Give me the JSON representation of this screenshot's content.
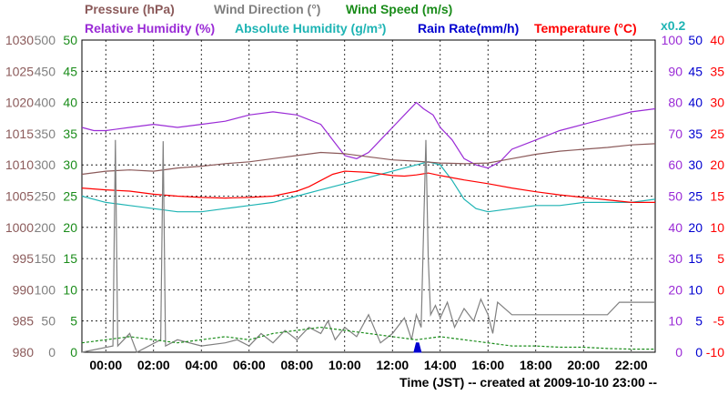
{
  "chart_data": {
    "type": "line",
    "title_lines": [
      [
        {
          "text": "Pressure (hPa)",
          "color": "#8b5a5a"
        },
        {
          "text": "Wind Direction (°)",
          "color": "#808080"
        },
        {
          "text": "Wind Speed (m/s)",
          "color": "#1a8c1a"
        }
      ],
      [
        {
          "text": "Relative Humidity (%)",
          "color": "#9a2bd6"
        },
        {
          "text": "Absolute Humidity (g/m³)",
          "color": "#1eb4b4"
        },
        {
          "text": "Rain Rate(mm/h)",
          "color": "#0000d0"
        },
        {
          "text": "Temperature (°C)",
          "color": "#ff0000"
        }
      ]
    ],
    "scale_note": {
      "text": "x0.2",
      "color": "#1eb4b4"
    },
    "xlabel": "Time (JST) -- created at 2009-10-10 23:00 --",
    "x_range_hours": [
      -1,
      23
    ],
    "x_ticks": [
      "00:00",
      "02:00",
      "04:00",
      "06:00",
      "08:00",
      "10:00",
      "12:00",
      "14:00",
      "16:00",
      "18:00",
      "20:00",
      "22:00"
    ],
    "x_tick_hours": [
      0,
      2,
      4,
      6,
      8,
      10,
      12,
      14,
      16,
      18,
      20,
      22
    ],
    "grid": true,
    "axes": {
      "pressure": {
        "side": "left",
        "color": "#8b5a5a",
        "ticks": [
          "1030",
          "1025",
          "1020",
          "1015",
          "1010",
          "1005",
          "1000",
          "995",
          "990",
          "985",
          "980"
        ],
        "range": [
          980,
          1030
        ]
      },
      "wind_direction": {
        "side": "left",
        "color": "#808080",
        "ticks": [
          "500",
          "450",
          "400",
          "350",
          "300",
          "250",
          "200",
          "150",
          "100",
          "50",
          "0"
        ],
        "range": [
          0,
          500
        ]
      },
      "wind_speed": {
        "side": "left",
        "color": "#1a8c1a",
        "ticks": [
          "50",
          "45",
          "40",
          "35",
          "30",
          "25",
          "20",
          "15",
          "10",
          "5",
          "0"
        ],
        "range": [
          0,
          50
        ]
      },
      "humidity": {
        "side": "right",
        "color": "#9a2bd6",
        "ticks": [
          "100",
          "90",
          "80",
          "70",
          "60",
          "50",
          "40",
          "30",
          "20",
          "10",
          "0"
        ],
        "range": [
          0,
          100
        ]
      },
      "rain_rate": {
        "side": "right",
        "color": "#0000d0",
        "ticks": [
          "50",
          "45",
          "40",
          "35",
          "30",
          "25",
          "20",
          "15",
          "10",
          "5",
          "0"
        ],
        "range": [
          0,
          50
        ]
      },
      "temperature": {
        "side": "right",
        "color": "#ff0000",
        "ticks": [
          "40",
          "35",
          "30",
          "25",
          "20",
          "15",
          "10",
          "5",
          "0",
          "-5",
          "-10"
        ],
        "range": [
          -10,
          40
        ]
      }
    },
    "series": [
      {
        "name": "Relative Humidity",
        "axis": "humidity",
        "color": "#9a2bd6",
        "x": [
          -1,
          -0.5,
          0,
          1,
          2,
          3,
          4,
          5,
          6,
          7,
          8,
          9,
          9.5,
          10,
          10.5,
          11,
          11.5,
          12,
          12.5,
          13,
          13.3,
          13.7,
          14,
          14.5,
          15,
          15.5,
          16,
          16.5,
          17,
          18,
          19,
          20,
          21,
          22,
          23
        ],
        "y": [
          72,
          71,
          71,
          72,
          73,
          72,
          73,
          74,
          76,
          77,
          76,
          73,
          68,
          63,
          62,
          64,
          68,
          72,
          76,
          80,
          78,
          76,
          72,
          68,
          62,
          60,
          59,
          61,
          65,
          68,
          71,
          73,
          75,
          77,
          78
        ]
      },
      {
        "name": "Absolute Humidity (x0.2)",
        "axis": "humidity",
        "color": "#1eb4b4",
        "x": [
          -1,
          0,
          1,
          2,
          3,
          4,
          5,
          6,
          7,
          8,
          9,
          10,
          11,
          12,
          12.5,
          13,
          13.5,
          14,
          14.5,
          15,
          15.5,
          16,
          17,
          18,
          19,
          20,
          21,
          22,
          23
        ],
        "y": [
          50,
          48,
          47,
          46,
          45,
          45,
          46,
          47,
          48,
          50,
          52,
          54,
          56,
          58,
          59,
          60,
          61,
          60,
          55,
          49,
          46,
          45,
          46,
          47,
          47,
          48,
          48,
          48,
          49
        ]
      },
      {
        "name": "Pressure",
        "axis": "pressure",
        "color": "#8b5a5a",
        "x": [
          -1,
          0,
          1,
          2,
          3,
          4,
          5,
          6,
          7,
          8,
          9,
          10,
          11,
          12,
          13,
          14,
          15,
          16,
          17,
          18,
          19,
          20,
          21,
          22,
          23
        ],
        "y": [
          1008.5,
          1009,
          1009.2,
          1009,
          1009.5,
          1009.8,
          1010.2,
          1010.5,
          1011,
          1011.5,
          1012,
          1011.8,
          1011.3,
          1010.8,
          1010.6,
          1010.3,
          1010.2,
          1010.3,
          1011,
          1011.7,
          1012.2,
          1012.5,
          1012.8,
          1013.2,
          1013.4
        ]
      },
      {
        "name": "Temperature",
        "axis": "temperature",
        "color": "#ff0000",
        "x": [
          -1,
          0,
          1,
          2,
          3,
          4,
          5,
          6,
          7,
          8,
          8.5,
          9,
          9.5,
          10,
          11,
          12,
          12.5,
          13,
          13.5,
          14,
          15,
          16,
          17,
          18,
          19,
          20,
          21,
          22,
          23
        ],
        "y": [
          16.3,
          16,
          15.8,
          15.3,
          15,
          14.8,
          14.7,
          14.8,
          15,
          15.8,
          16.5,
          17.5,
          18.5,
          19,
          18.8,
          18.3,
          18.2,
          18.4,
          18.7,
          18.3,
          17.6,
          17,
          16.3,
          15.7,
          15.2,
          14.8,
          14.4,
          14,
          14
        ]
      },
      {
        "name": "Wind Direction",
        "axis": "wind_direction",
        "color": "#808080",
        "x": [
          -1,
          0.3,
          0.4,
          0.5,
          1,
          1.3,
          2.3,
          2.4,
          2.5,
          3,
          4,
          5,
          5.5,
          6,
          6.5,
          7,
          7.5,
          8,
          8.5,
          9,
          9.3,
          9.6,
          10,
          10.5,
          11,
          11.5,
          12,
          12.5,
          12.8,
          13,
          13.2,
          13.4,
          13.5,
          13.6,
          13.8,
          14,
          14.3,
          14.6,
          15,
          15.4,
          15.7,
          16,
          16.2,
          16.4,
          17,
          18,
          19,
          20,
          21,
          21.5,
          22,
          23
        ],
        "y": [
          0,
          10,
          340,
          10,
          30,
          0,
          20,
          338,
          10,
          20,
          10,
          15,
          20,
          10,
          30,
          15,
          35,
          20,
          40,
          30,
          50,
          20,
          40,
          25,
          60,
          15,
          30,
          55,
          20,
          60,
          40,
          340,
          150,
          60,
          75,
          55,
          80,
          40,
          70,
          50,
          85,
          60,
          30,
          80,
          60,
          60,
          60,
          60,
          60,
          80,
          80,
          80
        ]
      },
      {
        "name": "Wind Speed",
        "axis": "wind_speed",
        "color": "#1a8c1a",
        "x": [
          -1,
          0,
          1,
          2,
          3,
          4,
          5,
          6,
          7,
          8,
          9,
          10,
          11,
          12,
          13,
          14,
          15,
          16,
          17,
          18,
          19,
          20,
          21,
          22,
          23
        ],
        "y": [
          1.5,
          2,
          2.5,
          2,
          1.5,
          2,
          2.5,
          2,
          3,
          3.5,
          4,
          3.5,
          3,
          2.5,
          2,
          2.5,
          2,
          1.5,
          1,
          1,
          0.8,
          0.8,
          0.6,
          0.5,
          0.5
        ]
      },
      {
        "name": "Rain Rate",
        "axis": "rain_rate",
        "color": "#0000d0",
        "fill": true,
        "x": [
          12.9,
          13.0,
          13.1,
          13.2
        ],
        "y": [
          0,
          1.5,
          1.5,
          0
        ]
      }
    ]
  }
}
